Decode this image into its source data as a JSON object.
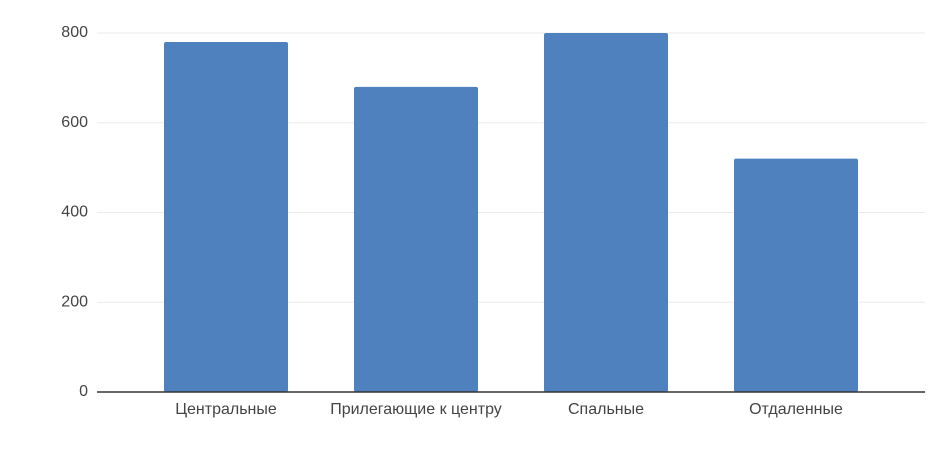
{
  "chart_data": {
    "type": "bar",
    "categories": [
      "Центральные",
      "Прилегающие к центру",
      "Спальные",
      "Отдаленные"
    ],
    "values": [
      780,
      680,
      800,
      520
    ],
    "color": "#4e81bd",
    "ylim": [
      0,
      800
    ],
    "yticks": [
      0,
      200,
      400,
      600,
      800
    ],
    "grid": true
  }
}
